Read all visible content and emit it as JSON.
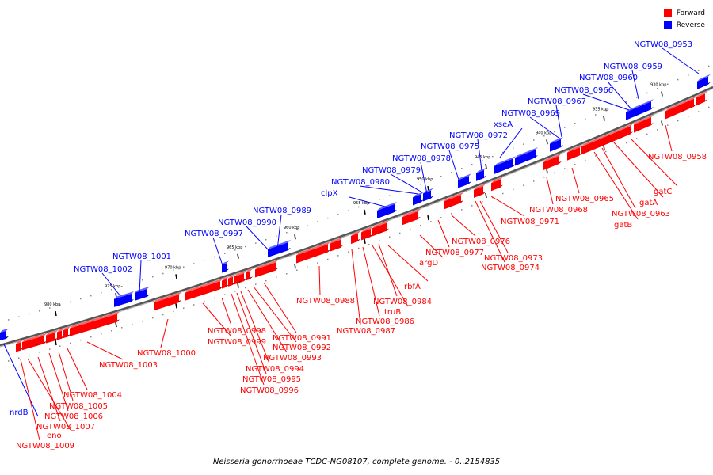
{
  "legend": {
    "forward": {
      "label": "Forward",
      "color": "#ff0000"
    },
    "reverse": {
      "label": "Reverse",
      "color": "#0000ff"
    }
  },
  "caption": "Neisseria gonorrhoeae TCDC-NG08107, complete genome. - 0..2154835",
  "ticks": [
    "930 kbp",
    "935 kbp",
    "940 kbp",
    "945 kbp",
    "950 kbp",
    "955 kbp",
    "960 kbp",
    "965 kbp",
    "970 kbp",
    "975 kbp",
    "980 kbp"
  ],
  "genes_reverse": [
    "NGTW08_0953",
    "NGTW08_0959",
    "NGTW08_0960",
    "NGTW08_0966",
    "NGTW08_0967",
    "NGTW08_0969",
    "xseA",
    "NGTW08_0972",
    "NGTW08_0975",
    "NGTW08_0978",
    "NGTW08_0979",
    "NGTW08_0980",
    "clpX",
    "NGTW08_0989",
    "NGTW08_0990",
    "NGTW08_0997",
    "NGTW08_1001",
    "NGTW08_1002",
    "nrdB"
  ],
  "genes_forward": [
    "NGTW08_0958",
    "gatC",
    "gatA",
    "NGTW08_0963",
    "gatB",
    "NGTW08_0965",
    "NGTW08_0968",
    "NGTW08_0971",
    "NGTW08_0973",
    "NGTW08_0974",
    "NGTW08_0976",
    "NGTW08_0977",
    "argD",
    "rbfA",
    "NGTW08_0984",
    "truB",
    "NGTW08_0986",
    "NGTW08_0987",
    "NGTW08_0988",
    "NGTW08_0991",
    "NGTW08_0992",
    "NGTW08_0993",
    "NGTW08_0994",
    "NGTW08_0995",
    "NGTW08_0996",
    "NGTW08_0998",
    "NGTW08_0999",
    "NGTW08_1000",
    "NGTW08_1003",
    "NGTW08_1004",
    "NGTW08_1005",
    "NGTW08_1006",
    "NGTW08_1007",
    "eno",
    "NGTW08_1009"
  ]
}
